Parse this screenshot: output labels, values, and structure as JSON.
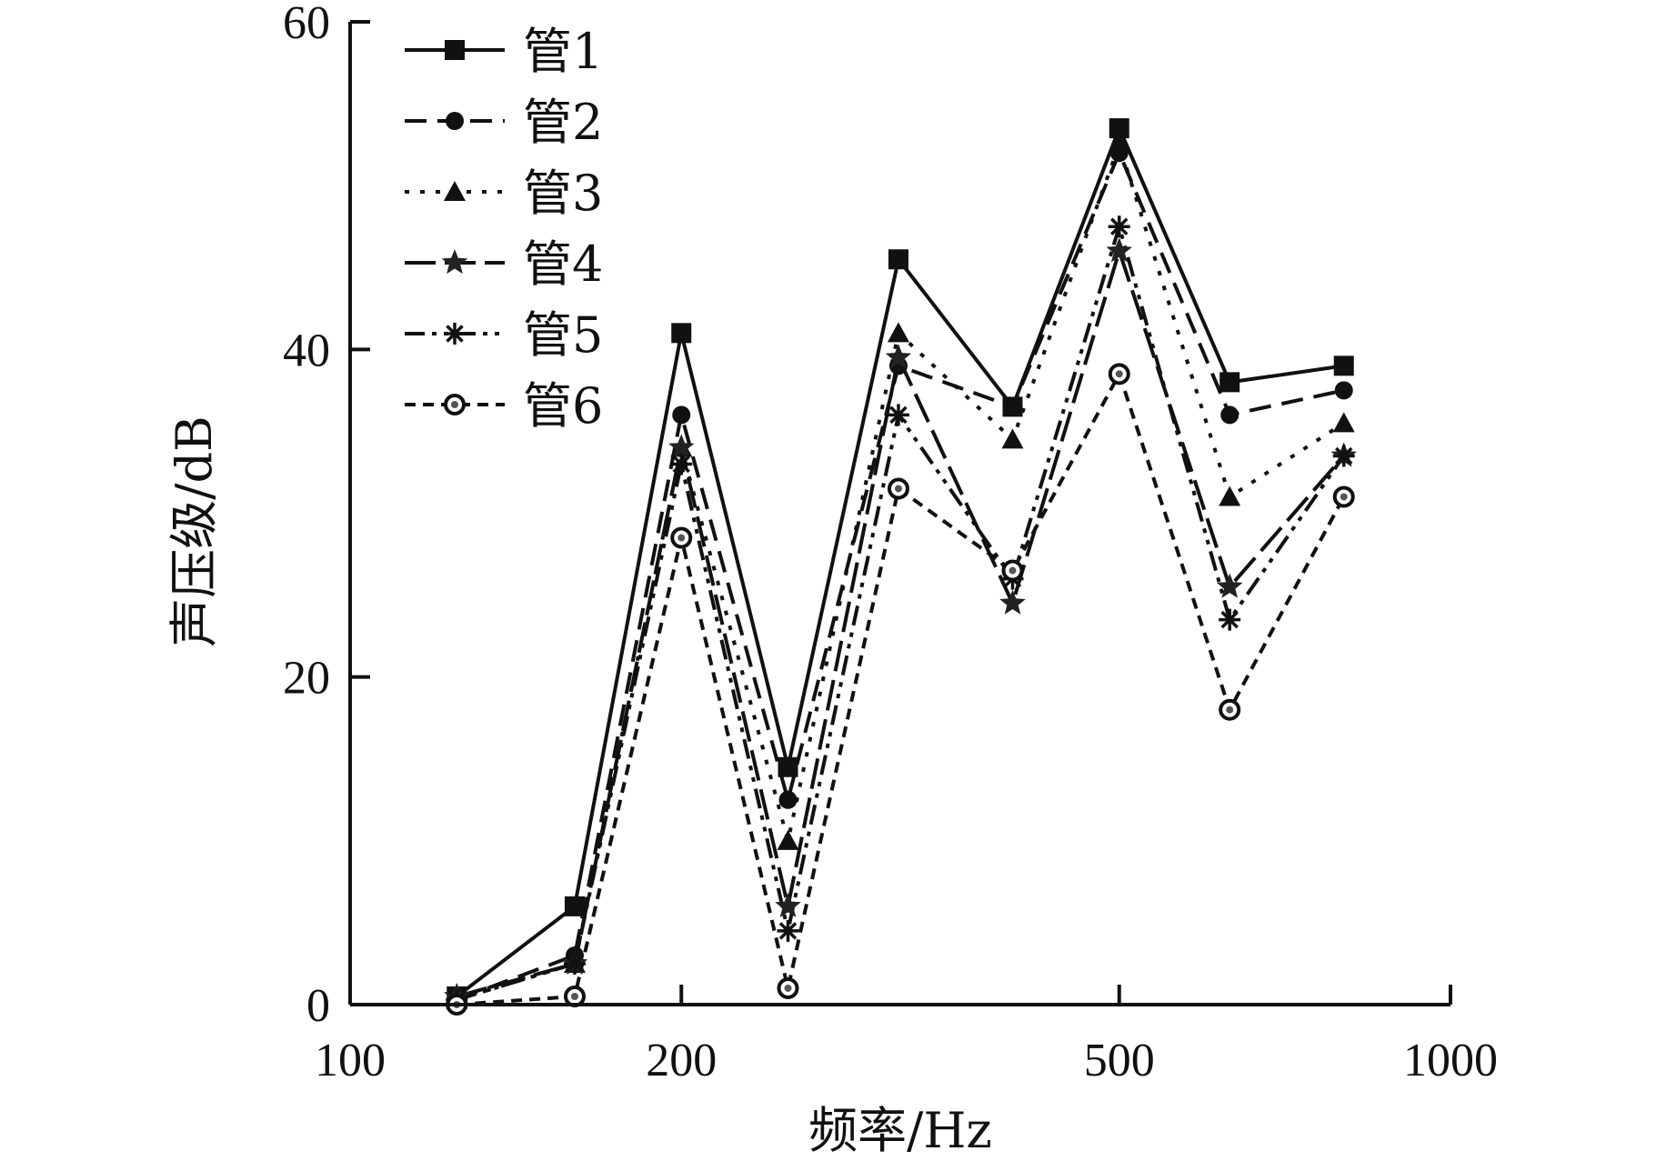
{
  "chart_data": {
    "type": "line",
    "xscale": "log",
    "xlim": [
      100,
      1000
    ],
    "ylim": [
      0,
      60
    ],
    "xticks": [
      "100",
      "200",
      "500",
      "1000"
    ],
    "yticks": [
      "0",
      "20",
      "40",
      "60"
    ],
    "xlabel": "频率/Hz",
    "ylabel": "声压级/dB",
    "legend_position": "top-left",
    "grid": false,
    "x": [
      125,
      160,
      200,
      250,
      315,
      400,
      500,
      630,
      800
    ],
    "series": [
      {
        "name": "管1",
        "marker": "square",
        "dash": "solid",
        "values": [
          0.5,
          6.0,
          41.0,
          14.5,
          45.5,
          36.5,
          53.5,
          38.0,
          39.0
        ]
      },
      {
        "name": "管2",
        "marker": "circle",
        "dash": "dashed",
        "values": [
          0.3,
          3.0,
          36.0,
          12.5,
          39.0,
          36.5,
          52.0,
          36.0,
          37.5
        ]
      },
      {
        "name": "管3",
        "marker": "triangle",
        "dash": "dotted",
        "values": [
          0.3,
          2.5,
          34.0,
          10.0,
          41.0,
          34.5,
          52.5,
          31.0,
          35.5
        ]
      },
      {
        "name": "管4",
        "marker": "star",
        "dash": "longdash",
        "values": [
          0.5,
          2.5,
          34.0,
          6.0,
          39.5,
          24.5,
          46.0,
          25.5,
          33.5
        ]
      },
      {
        "name": "管5",
        "marker": "asterisk",
        "dash": "dashdotdot",
        "values": [
          0.3,
          2.5,
          33.0,
          4.5,
          36.0,
          26.0,
          47.5,
          23.5,
          33.5
        ]
      },
      {
        "name": "管6",
        "marker": "ring",
        "dash": "shortdash",
        "values": [
          0.0,
          0.5,
          28.5,
          1.0,
          31.5,
          26.5,
          38.5,
          18.0,
          31.0
        ]
      }
    ]
  }
}
